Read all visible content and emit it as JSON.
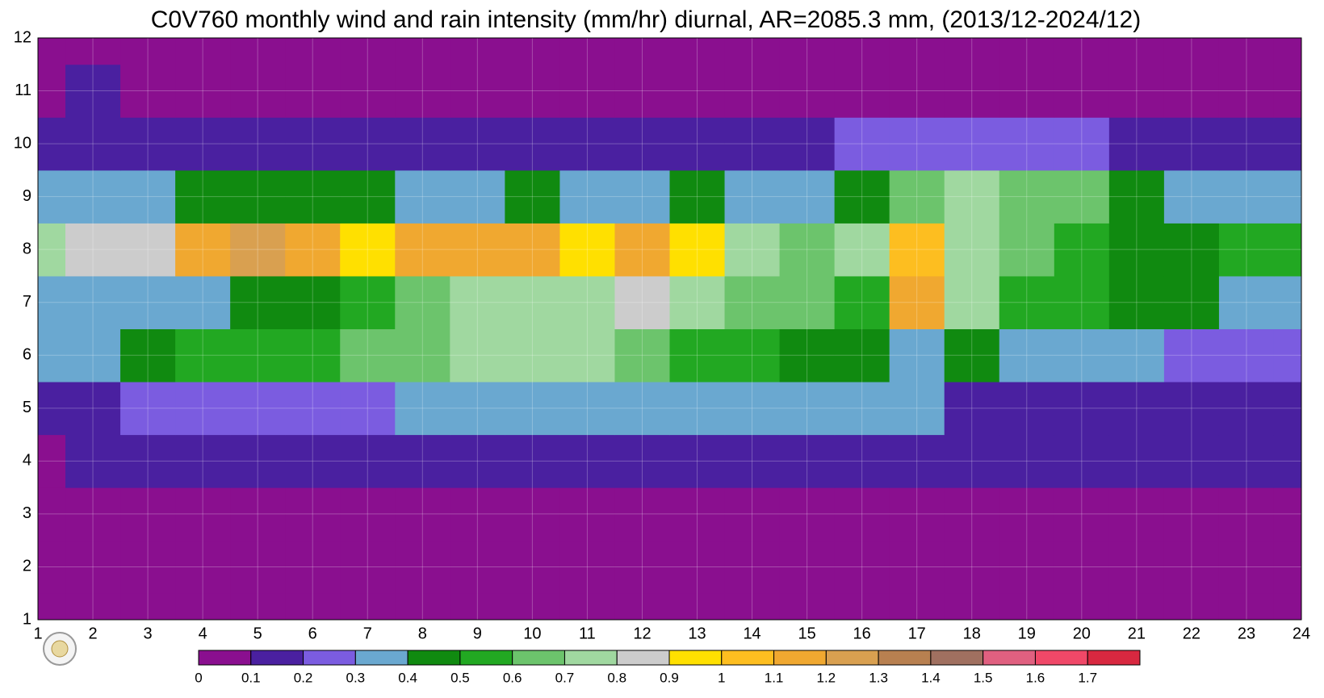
{
  "chart_data": {
    "type": "heatmap",
    "title": "C0V760 monthly wind and rain intensity (mm/hr) diurnal, AR=2085.3 mm, (2013/12-2024/12)",
    "x": [
      1,
      2,
      3,
      4,
      5,
      6,
      7,
      8,
      9,
      10,
      11,
      12,
      13,
      14,
      15,
      16,
      17,
      18,
      19,
      20,
      21,
      22,
      23,
      24
    ],
    "y": [
      1,
      2,
      3,
      4,
      5,
      6,
      7,
      8,
      9,
      10,
      11,
      12
    ],
    "xlim": [
      1,
      24
    ],
    "ylim": [
      1,
      12
    ],
    "xticks": [
      1,
      2,
      3,
      4,
      5,
      6,
      7,
      8,
      9,
      10,
      11,
      12,
      13,
      14,
      15,
      16,
      17,
      18,
      19,
      20,
      21,
      22,
      23,
      24
    ],
    "yticks": [
      1,
      2,
      3,
      4,
      5,
      6,
      7,
      8,
      9,
      10,
      11,
      12
    ],
    "values": [
      [
        0.05,
        0.05,
        0.05,
        0.05,
        0.05,
        0.05,
        0.05,
        0.05,
        0.05,
        0.05,
        0.05,
        0.05,
        0.05,
        0.05,
        0.05,
        0.05,
        0.05,
        0.05,
        0.05,
        0.05,
        0.05,
        0.05,
        0.05,
        0.05
      ],
      [
        0.05,
        0.05,
        0.05,
        0.05,
        0.05,
        0.05,
        0.05,
        0.05,
        0.05,
        0.05,
        0.05,
        0.05,
        0.05,
        0.05,
        0.05,
        0.05,
        0.05,
        0.05,
        0.05,
        0.05,
        0.05,
        0.05,
        0.05,
        0.05
      ],
      [
        0.05,
        0.05,
        0.05,
        0.05,
        0.05,
        0.05,
        0.05,
        0.05,
        0.05,
        0.05,
        0.05,
        0.05,
        0.05,
        0.05,
        0.05,
        0.05,
        0.05,
        0.05,
        0.05,
        0.05,
        0.05,
        0.05,
        0.05,
        0.05
      ],
      [
        0.08,
        0.1,
        0.12,
        0.12,
        0.12,
        0.1,
        0.12,
        0.12,
        0.12,
        0.12,
        0.12,
        0.12,
        0.12,
        0.1,
        0.12,
        0.1,
        0.12,
        0.12,
        0.1,
        0.1,
        0.12,
        0.12,
        0.1,
        0.1
      ],
      [
        0.15,
        0.15,
        0.25,
        0.25,
        0.25,
        0.25,
        0.25,
        0.3,
        0.3,
        0.3,
        0.3,
        0.3,
        0.3,
        0.35,
        0.35,
        0.35,
        0.3,
        0.15,
        0.15,
        0.15,
        0.15,
        0.15,
        0.15,
        0.15
      ],
      [
        0.35,
        0.35,
        0.45,
        0.55,
        0.5,
        0.5,
        0.6,
        0.65,
        0.75,
        0.75,
        0.75,
        0.6,
        0.55,
        0.5,
        0.45,
        0.45,
        0.3,
        0.45,
        0.35,
        0.3,
        0.3,
        0.25,
        0.2,
        0.25
      ],
      [
        0.35,
        0.35,
        0.35,
        0.3,
        0.45,
        0.45,
        0.55,
        0.65,
        0.7,
        0.75,
        0.75,
        0.8,
        0.75,
        0.65,
        0.6,
        0.55,
        1.1,
        0.75,
        0.55,
        0.5,
        0.45,
        0.4,
        0.35,
        0.35
      ],
      [
        0.75,
        0.85,
        0.85,
        1.1,
        1.2,
        1.15,
        0.9,
        1.1,
        1.15,
        1.1,
        0.9,
        1.1,
        0.95,
        0.7,
        0.65,
        0.75,
        1.05,
        0.75,
        0.65,
        0.55,
        0.45,
        0.45,
        0.55,
        0.5
      ],
      [
        0.35,
        0.35,
        0.35,
        0.4,
        0.4,
        0.4,
        0.4,
        0.35,
        0.35,
        0.4,
        0.35,
        0.35,
        0.4,
        0.35,
        0.35,
        0.45,
        0.65,
        0.7,
        0.65,
        0.65,
        0.45,
        0.35,
        0.3,
        0.35
      ],
      [
        0.1,
        0.15,
        0.15,
        0.15,
        0.1,
        0.1,
        0.15,
        0.15,
        0.15,
        0.15,
        0.12,
        0.12,
        0.12,
        0.15,
        0.15,
        0.2,
        0.2,
        0.2,
        0.2,
        0.25,
        0.15,
        0.15,
        0.15,
        0.12
      ],
      [
        0.05,
        0.15,
        0.05,
        0.05,
        0.05,
        0.05,
        0.05,
        0.05,
        0.05,
        0.05,
        0.05,
        0.05,
        0.05,
        0.05,
        0.05,
        0.05,
        0.05,
        0.05,
        0.05,
        0.05,
        0.05,
        0.05,
        0.05,
        0.05
      ],
      [
        0.05,
        0.05,
        0.05,
        0.05,
        0.05,
        0.05,
        0.05,
        0.05,
        0.05,
        0.05,
        0.05,
        0.05,
        0.05,
        0.05,
        0.05,
        0.05,
        0.05,
        0.05,
        0.05,
        0.05,
        0.05,
        0.05,
        0.05,
        0.05
      ]
    ],
    "levels": [
      0,
      0.1,
      0.2,
      0.3,
      0.4,
      0.5,
      0.6,
      0.7,
      0.8,
      0.9,
      1,
      1.1,
      1.2,
      1.3,
      1.4,
      1.5,
      1.6,
      1.7
    ],
    "colors": [
      "#8a0f8f",
      "#4a20a0",
      "#7b5ce0",
      "#6aa8d0",
      "#108a10",
      "#22a822",
      "#6cc46c",
      "#a0d8a0",
      "#cccccc",
      "#ffe000",
      "#fdbe20",
      "#f0a830",
      "#d9a050",
      "#b88050",
      "#a07060",
      "#e06080",
      "#f04868",
      "#d82840"
    ]
  }
}
